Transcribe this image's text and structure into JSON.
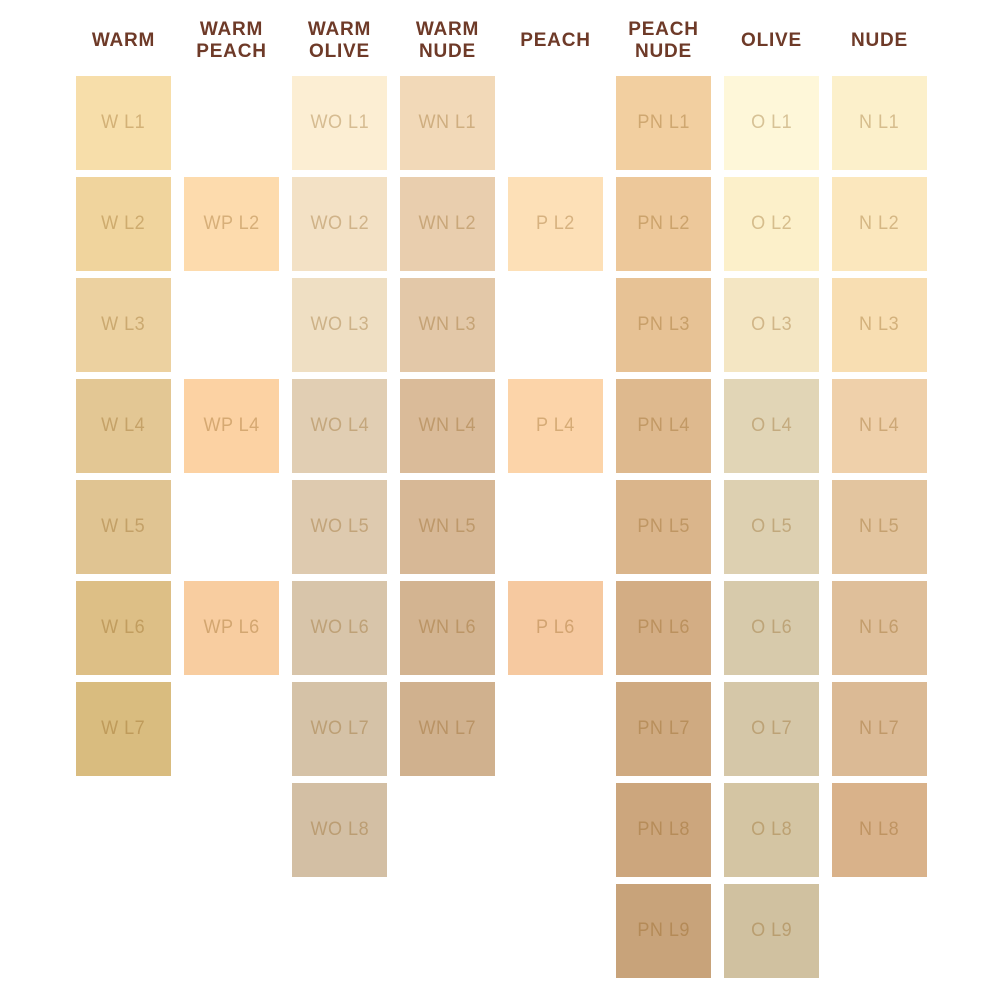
{
  "page": {
    "background": "#FFFFFF",
    "header_text_color": "#6E3A28",
    "label_overlay_rgb": [
      140,
      90,
      20
    ],
    "label_overlay_alpha": 0.34
  },
  "shade_chart": {
    "rows_max": 9,
    "columns": [
      {
        "id": "warm",
        "label": "WARM",
        "swatches": [
          {
            "code": "W L1",
            "row": 1,
            "color": "#F7DEAA"
          },
          {
            "code": "W L2",
            "row": 2,
            "color": "#F0D49D"
          },
          {
            "code": "W L3",
            "row": 3,
            "color": "#ECD1A0"
          },
          {
            "code": "W L4",
            "row": 4,
            "color": "#E3C794"
          },
          {
            "code": "W L5",
            "row": 5,
            "color": "#E0C492"
          },
          {
            "code": "W L6",
            "row": 6,
            "color": "#DDBF86"
          },
          {
            "code": "W L7",
            "row": 7,
            "color": "#D9BC7F"
          }
        ]
      },
      {
        "id": "warm-peach",
        "label": "WARM\nPEACH",
        "swatches": [
          {
            "code": "WP L2",
            "row": 2,
            "color": "#FDDBAD"
          },
          {
            "code": "WP L4",
            "row": 4,
            "color": "#FCD2A3"
          },
          {
            "code": "WP L6",
            "row": 6,
            "color": "#F8CDA0"
          }
        ]
      },
      {
        "id": "warm-olive",
        "label": "WARM\nOLIVE",
        "swatches": [
          {
            "code": "WO L1",
            "row": 1,
            "color": "#FCEED3"
          },
          {
            "code": "WO L2",
            "row": 2,
            "color": "#F3E1C5"
          },
          {
            "code": "WO L3",
            "row": 3,
            "color": "#EFDFC3"
          },
          {
            "code": "WO L4",
            "row": 4,
            "color": "#E1CEB3"
          },
          {
            "code": "WO L5",
            "row": 5,
            "color": "#DECAAF"
          },
          {
            "code": "WO L6",
            "row": 6,
            "color": "#D8C5AA"
          },
          {
            "code": "WO L7",
            "row": 7,
            "color": "#D5C2A7"
          },
          {
            "code": "WO L8",
            "row": 8,
            "color": "#D3BFA4"
          }
        ]
      },
      {
        "id": "warm-nude",
        "label": "WARM\nNUDE",
        "swatches": [
          {
            "code": "WN L1",
            "row": 1,
            "color": "#F2D9B8"
          },
          {
            "code": "WN L2",
            "row": 2,
            "color": "#E9CEAE"
          },
          {
            "code": "WN L3",
            "row": 3,
            "color": "#E3C8A8"
          },
          {
            "code": "WN L4",
            "row": 4,
            "color": "#DABB99"
          },
          {
            "code": "WN L5",
            "row": 5,
            "color": "#D7B896"
          },
          {
            "code": "WN L6",
            "row": 6,
            "color": "#D3B491"
          },
          {
            "code": "WN L7",
            "row": 7,
            "color": "#D0B18E"
          }
        ]
      },
      {
        "id": "peach",
        "label": "PEACH",
        "swatches": [
          {
            "code": "P L2",
            "row": 2,
            "color": "#FDE0B7"
          },
          {
            "code": "P L4",
            "row": 4,
            "color": "#FCD4A9"
          },
          {
            "code": "P L6",
            "row": 6,
            "color": "#F6C9A0"
          }
        ]
      },
      {
        "id": "peach-nude",
        "label": "PEACH\nNUDE",
        "swatches": [
          {
            "code": "PN L1",
            "row": 1,
            "color": "#F2CFA0"
          },
          {
            "code": "PN L2",
            "row": 2,
            "color": "#EDC89A"
          },
          {
            "code": "PN L3",
            "row": 3,
            "color": "#E7C295"
          },
          {
            "code": "PN L4",
            "row": 4,
            "color": "#DEB98E"
          },
          {
            "code": "PN L5",
            "row": 5,
            "color": "#DAB58B"
          },
          {
            "code": "PN L6",
            "row": 6,
            "color": "#D3AD84"
          },
          {
            "code": "PN L7",
            "row": 7,
            "color": "#CFAA81"
          },
          {
            "code": "PN L8",
            "row": 8,
            "color": "#CCA67D"
          },
          {
            "code": "PN L9",
            "row": 9,
            "color": "#C8A37A"
          }
        ]
      },
      {
        "id": "olive",
        "label": "OLIVE",
        "swatches": [
          {
            "code": "O L1",
            "row": 1,
            "color": "#FEF7D9"
          },
          {
            "code": "O L2",
            "row": 2,
            "color": "#FCF0CA"
          },
          {
            "code": "O L3",
            "row": 3,
            "color": "#F4E6C3"
          },
          {
            "code": "O L4",
            "row": 4,
            "color": "#E1D5B6"
          },
          {
            "code": "O L5",
            "row": 5,
            "color": "#DDD0B1"
          },
          {
            "code": "O L6",
            "row": 6,
            "color": "#D7CAAB"
          },
          {
            "code": "O L7",
            "row": 7,
            "color": "#D5C7A8"
          },
          {
            "code": "O L8",
            "row": 8,
            "color": "#D4C5A3"
          },
          {
            "code": "O L9",
            "row": 9,
            "color": "#D0C1A0"
          }
        ]
      },
      {
        "id": "nude",
        "label": "NUDE",
        "swatches": [
          {
            "code": "N L1",
            "row": 1,
            "color": "#FCF0CB"
          },
          {
            "code": "N L2",
            "row": 2,
            "color": "#FBE7BD"
          },
          {
            "code": "N L3",
            "row": 3,
            "color": "#F8DEB2"
          },
          {
            "code": "N L4",
            "row": 4,
            "color": "#EFD0AA"
          },
          {
            "code": "N L5",
            "row": 5,
            "color": "#E3C59F"
          },
          {
            "code": "N L6",
            "row": 6,
            "color": "#DFBF9A"
          },
          {
            "code": "N L7",
            "row": 7,
            "color": "#DBBA95"
          },
          {
            "code": "N L8",
            "row": 8,
            "color": "#D9B28A"
          }
        ]
      }
    ]
  }
}
